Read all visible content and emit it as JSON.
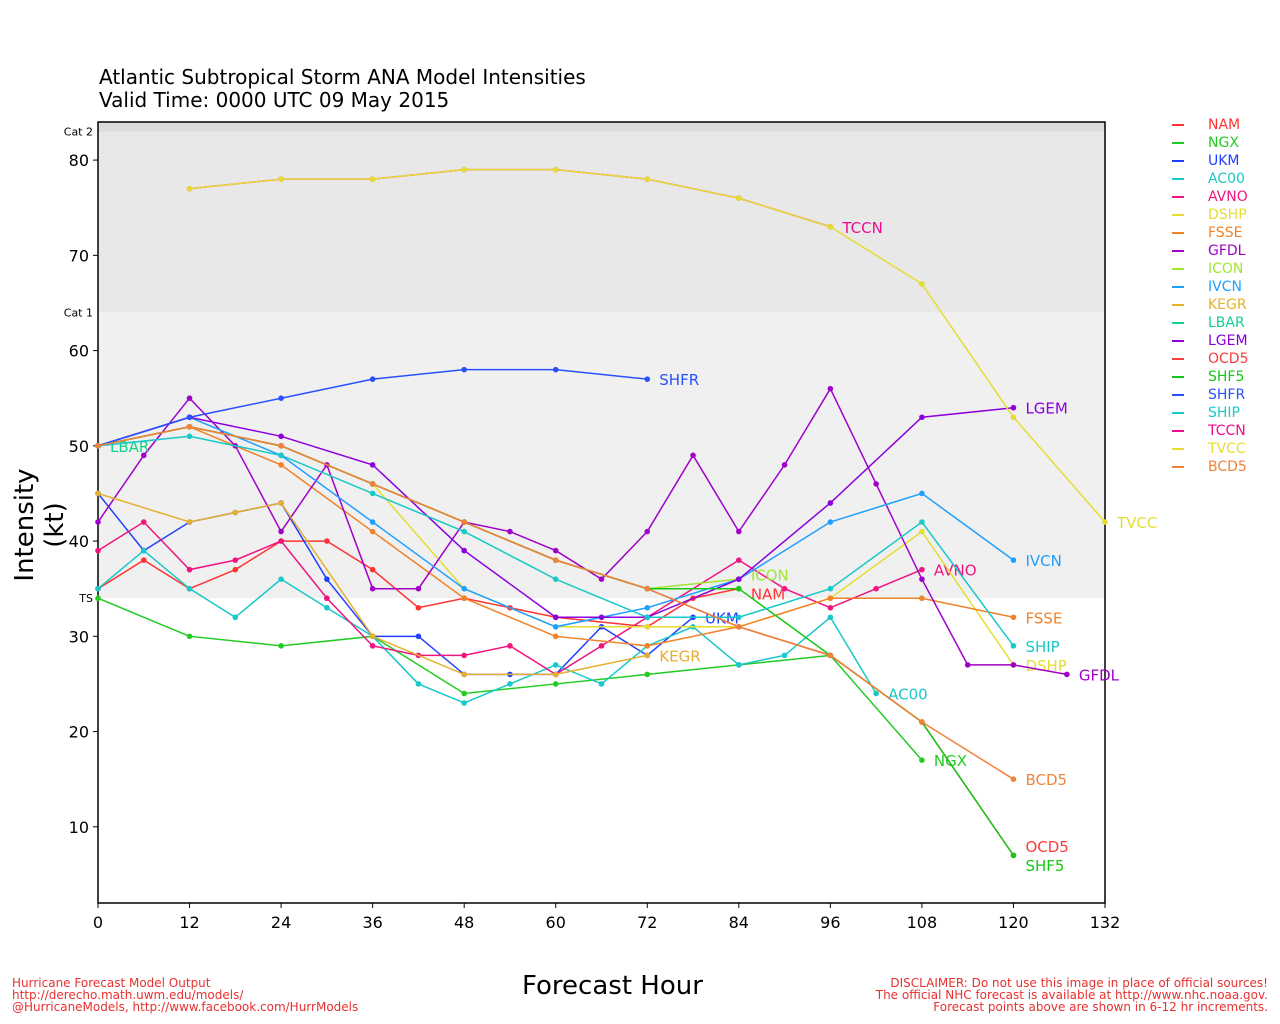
{
  "chart_data": {
    "type": "line",
    "title": "Atlantic Subtropical Storm ANA Model Intensities",
    "subtitle": "Valid Time: 0000 UTC 09 May 2015",
    "xlabel": "Forecast Hour",
    "ylabel": "Intensity (kt)",
    "xlim": [
      0,
      132
    ],
    "ylim": [
      2,
      84
    ],
    "xticks": [
      0,
      12,
      24,
      36,
      48,
      60,
      72,
      84,
      96,
      108,
      120,
      132
    ],
    "yticks": [
      10,
      20,
      30,
      40,
      50,
      60,
      70,
      80
    ],
    "bands": [
      {
        "label": "TS",
        "from": 34,
        "to": 64,
        "color": "#f0f0f0"
      },
      {
        "label": "Cat 1",
        "from": 64,
        "to": 83,
        "color": "#e8e8e8"
      },
      {
        "label": "Cat 2",
        "from": 83,
        "to": 84,
        "color": "#dcdcdc"
      }
    ],
    "series": [
      {
        "name": "NAM",
        "color": "#ff3333",
        "x": [
          0,
          6,
          12,
          18,
          24,
          30,
          36,
          42,
          48,
          54,
          60,
          72,
          78,
          84
        ],
        "y": [
          35,
          38,
          35,
          37,
          40,
          40,
          37,
          33,
          34,
          33,
          32,
          31,
          34,
          35
        ]
      },
      {
        "name": "NGX",
        "color": "#22cc22",
        "x": [
          0,
          12,
          24,
          36,
          48,
          60,
          72,
          84,
          96,
          108
        ],
        "y": [
          34,
          30,
          29,
          30,
          24,
          25,
          26,
          27,
          28,
          17
        ]
      },
      {
        "name": "UKM",
        "color": "#2040ff",
        "x": [
          0,
          6,
          12,
          18,
          24,
          30,
          36,
          42,
          48,
          54,
          60,
          66,
          72,
          78
        ],
        "y": [
          45,
          39,
          42,
          43,
          44,
          36,
          30,
          30,
          26,
          26,
          26,
          31,
          28,
          32
        ]
      },
      {
        "name": "AC00",
        "color": "#19c8c8",
        "x": [
          0,
          6,
          12,
          18,
          24,
          30,
          36,
          42,
          48,
          54,
          60,
          66,
          72,
          78,
          84,
          90,
          96,
          102
        ],
        "y": [
          35,
          39,
          35,
          32,
          36,
          33,
          30,
          25,
          23,
          25,
          27,
          25,
          29,
          31,
          27,
          28,
          32,
          24
        ]
      },
      {
        "name": "AVNO",
        "color": "#f0147f",
        "x": [
          0,
          6,
          12,
          18,
          24,
          30,
          36,
          42,
          48,
          54,
          60,
          66,
          72,
          84,
          90,
          96,
          102,
          108
        ],
        "y": [
          39,
          42,
          37,
          38,
          40,
          34,
          29,
          28,
          28,
          29,
          26,
          29,
          32,
          38,
          35,
          33,
          35,
          37
        ]
      },
      {
        "name": "DSHP",
        "color": "#e6dc32",
        "x": [
          0,
          12,
          24,
          36,
          48,
          60,
          72,
          84,
          96,
          108,
          120
        ],
        "y": [
          50,
          52,
          50,
          46,
          35,
          31,
          31,
          31,
          34,
          41,
          27
        ]
      },
      {
        "name": "FSSE",
        "color": "#f08228",
        "x": [
          0,
          12,
          24,
          36,
          48,
          60,
          72,
          84,
          96,
          108,
          120
        ],
        "y": [
          50,
          52,
          48,
          41,
          34,
          30,
          29,
          31,
          34,
          34,
          32
        ]
      },
      {
        "name": "GFDL",
        "color": "#a000c8",
        "x": [
          0,
          6,
          12,
          18,
          24,
          30,
          36,
          42,
          48,
          54,
          60,
          66,
          72,
          78,
          84,
          90,
          96,
          102,
          108,
          114,
          120,
          127
        ],
        "y": [
          42,
          49,
          55,
          50,
          41,
          48,
          35,
          35,
          42,
          41,
          39,
          36,
          41,
          49,
          41,
          48,
          56,
          46,
          36,
          27,
          27,
          26
        ]
      },
      {
        "name": "ICON",
        "color": "#a0e632",
        "x": [
          0,
          12,
          24,
          36,
          48,
          60,
          72,
          84
        ],
        "y": [
          50,
          52,
          50,
          46,
          42,
          38,
          35,
          36
        ]
      },
      {
        "name": "IVCN",
        "color": "#1ea0ff",
        "x": [
          0,
          12,
          24,
          36,
          48,
          60,
          72,
          84,
          96,
          108,
          120
        ],
        "y": [
          50,
          53,
          49,
          42,
          35,
          31,
          33,
          36,
          42,
          45,
          38
        ]
      },
      {
        "name": "KEGR",
        "color": "#e6af2d",
        "x": [
          0,
          12,
          18,
          24,
          36,
          48,
          60,
          72
        ],
        "y": [
          45,
          42,
          43,
          44,
          30,
          26,
          26,
          28
        ]
      },
      {
        "name": "LBAR",
        "color": "#14d28c",
        "x": [
          0
        ],
        "y": [
          50
        ]
      },
      {
        "name": "LGEM",
        "color": "#8c00dc",
        "x": [
          0,
          12,
          24,
          36,
          48,
          60,
          66,
          72,
          84,
          96,
          108,
          120
        ],
        "y": [
          50,
          53,
          51,
          48,
          39,
          32,
          32,
          32,
          36,
          44,
          53,
          54
        ]
      },
      {
        "name": "OCD5",
        "color": "#fa3c3c",
        "x": [
          0,
          12,
          24,
          36,
          48,
          60,
          72,
          84,
          96,
          108,
          120
        ],
        "y": [
          50,
          52,
          50,
          46,
          42,
          38,
          35,
          31,
          28,
          21,
          7
        ]
      },
      {
        "name": "SHF5",
        "color": "#14c814",
        "x": [
          0,
          12,
          24,
          36,
          48,
          60,
          72,
          84,
          96,
          108,
          120
        ],
        "y": [
          50,
          52,
          50,
          46,
          42,
          38,
          35,
          35,
          28,
          21,
          7
        ]
      },
      {
        "name": "SHFR",
        "color": "#2850ff",
        "x": [
          0,
          12,
          24,
          36,
          48,
          60,
          72
        ],
        "y": [
          50,
          53,
          55,
          57,
          58,
          58,
          57
        ]
      },
      {
        "name": "SHIP",
        "color": "#19c8c8",
        "x": [
          0,
          12,
          24,
          36,
          48,
          60,
          72,
          84,
          96,
          108,
          120
        ],
        "y": [
          50,
          51,
          49,
          45,
          41,
          36,
          32,
          32,
          35,
          42,
          29
        ]
      },
      {
        "name": "TCCN",
        "color": "#f00a8c",
        "x": [
          12,
          24,
          36,
          48,
          60,
          72,
          84,
          96
        ],
        "y": [
          77,
          78,
          78,
          79,
          79,
          78,
          76,
          73
        ]
      },
      {
        "name": "TVCC",
        "color": "#e6dc32",
        "x": [
          12,
          24,
          36,
          48,
          60,
          72,
          84,
          96,
          108,
          120,
          132
        ],
        "y": [
          77,
          78,
          78,
          79,
          79,
          78,
          76,
          73,
          67,
          53,
          42
        ]
      },
      {
        "name": "BCD5",
        "color": "#f0823c",
        "x": [
          0,
          12,
          24,
          36,
          48,
          60,
          72,
          84,
          96,
          108,
          120
        ],
        "y": [
          50,
          52,
          50,
          46,
          42,
          38,
          35,
          31,
          28,
          21,
          15
        ]
      }
    ]
  },
  "footer": {
    "left": [
      "Hurricane Forecast Model Output",
      "http://derecho.math.uwm.edu/models/",
      "@HurricaneModels, http://www.facebook.com/HurrModels"
    ],
    "right": [
      "DISCLAIMER: Do not use this image in place of official sources!",
      "The official NHC forecast is available at http://www.nhc.noaa.gov.",
      "Forecast points above are shown in 6-12 hr increments."
    ]
  }
}
